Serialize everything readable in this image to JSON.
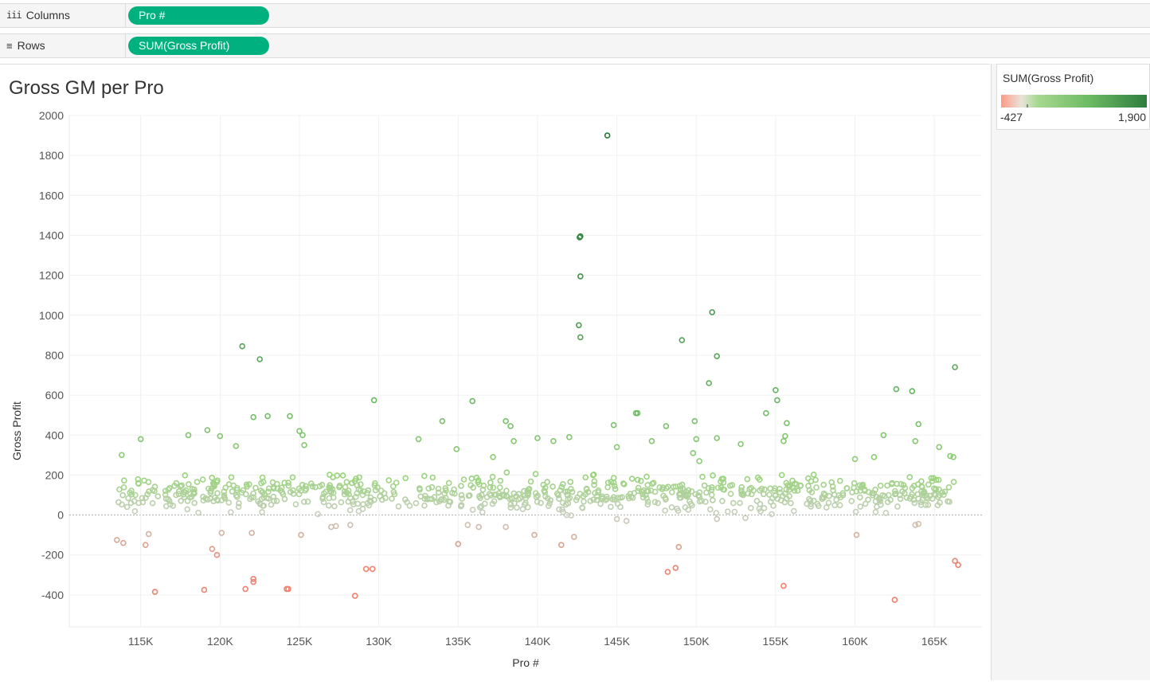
{
  "shelves": {
    "columns": {
      "label": "Columns",
      "icon": "columns-icon",
      "pill": "Pro #"
    },
    "rows": {
      "label": "Rows",
      "icon": "rows-icon",
      "pill": "SUM(Gross Profit)"
    }
  },
  "colors": {
    "pill": "#00b180",
    "negative": "#ff9a85",
    "neutral": "#d9dcd6",
    "light_green": "#9ed885",
    "mid_green": "#5cb85c",
    "dark_green": "#2e7d3e"
  },
  "legend": {
    "title": "SUM(Gross Profit)",
    "min_label": "-427",
    "max_label": "1,900",
    "min": -427,
    "max": 1900
  },
  "chart_data": {
    "type": "scatter",
    "title": "Gross GM per Pro",
    "xlabel": "Pro #",
    "ylabel": "Gross Profit",
    "xlim": [
      110500,
      168000
    ],
    "ylim": [
      -560,
      2000
    ],
    "x_ticks": [
      115000,
      120000,
      125000,
      130000,
      135000,
      140000,
      145000,
      150000,
      155000,
      160000,
      165000
    ],
    "x_tick_labels": [
      "115K",
      "120K",
      "125K",
      "130K",
      "135K",
      "140K",
      "145K",
      "150K",
      "155K",
      "160K",
      "165K"
    ],
    "y_ticks": [
      -400,
      -200,
      0,
      200,
      400,
      600,
      800,
      1000,
      1200,
      1400,
      1600,
      1800,
      2000
    ],
    "y_tick_labels": [
      "-400",
      "-200",
      "0",
      "200",
      "400",
      "600",
      "800",
      "1000",
      "1200",
      "1400",
      "1600",
      "1800",
      "2000"
    ],
    "zero_line": true,
    "grid": true,
    "marker": "hollow-circle",
    "points": [
      [
        144400,
        1900
      ],
      [
        142700,
        1395
      ],
      [
        142650,
        1390
      ],
      [
        142700,
        1195
      ],
      [
        142600,
        950
      ],
      [
        142700,
        890
      ],
      [
        151000,
        1015
      ],
      [
        149100,
        875
      ],
      [
        151300,
        795
      ],
      [
        150800,
        660
      ],
      [
        155000,
        625
      ],
      [
        155100,
        575
      ],
      [
        162600,
        630
      ],
      [
        163600,
        620
      ],
      [
        166300,
        740
      ],
      [
        121400,
        845
      ],
      [
        122500,
        780
      ],
      [
        122100,
        490
      ],
      [
        123000,
        495
      ],
      [
        124400,
        495
      ],
      [
        129700,
        575
      ],
      [
        135900,
        570
      ],
      [
        115000,
        380
      ],
      [
        113800,
        300
      ],
      [
        118000,
        400
      ],
      [
        119200,
        425
      ],
      [
        120000,
        395
      ],
      [
        121000,
        345
      ],
      [
        125000,
        420
      ],
      [
        125200,
        400
      ],
      [
        125300,
        350
      ],
      [
        132500,
        380
      ],
      [
        134000,
        470
      ],
      [
        138000,
        470
      ],
      [
        138300,
        445
      ],
      [
        140000,
        385
      ],
      [
        141000,
        370
      ],
      [
        142000,
        390
      ],
      [
        144800,
        450
      ],
      [
        146300,
        510
      ],
      [
        146200,
        510
      ],
      [
        147200,
        370
      ],
      [
        148100,
        445
      ],
      [
        149900,
        470
      ],
      [
        150000,
        380
      ],
      [
        151300,
        385
      ],
      [
        152800,
        355
      ],
      [
        154400,
        510
      ],
      [
        155500,
        370
      ],
      [
        155700,
        460
      ],
      [
        155600,
        395
      ],
      [
        160000,
        280
      ],
      [
        161200,
        290
      ],
      [
        161800,
        400
      ],
      [
        164000,
        455
      ],
      [
        163800,
        370
      ],
      [
        165300,
        340
      ],
      [
        166000,
        295
      ],
      [
        166200,
        290
      ],
      [
        134900,
        330
      ],
      [
        137200,
        290
      ],
      [
        138500,
        370
      ],
      [
        143500,
        200
      ],
      [
        145000,
        340
      ],
      [
        149800,
        310
      ],
      [
        150200,
        270
      ],
      [
        113500,
        -125
      ],
      [
        113900,
        -140
      ],
      [
        115300,
        -150
      ],
      [
        115500,
        -95
      ],
      [
        115900,
        -385
      ],
      [
        119000,
        -375
      ],
      [
        119500,
        -170
      ],
      [
        119800,
        -200
      ],
      [
        120100,
        -90
      ],
      [
        121600,
        -370
      ],
      [
        122100,
        -335
      ],
      [
        122100,
        -320
      ],
      [
        122000,
        -90
      ],
      [
        124200,
        -370
      ],
      [
        124300,
        -370
      ],
      [
        125100,
        -100
      ],
      [
        128500,
        -405
      ],
      [
        129200,
        -270
      ],
      [
        129600,
        -270
      ],
      [
        135000,
        -145
      ],
      [
        139800,
        -100
      ],
      [
        141500,
        -150
      ],
      [
        142300,
        -110
      ],
      [
        148200,
        -285
      ],
      [
        148700,
        -265
      ],
      [
        148900,
        -160
      ],
      [
        155500,
        -355
      ],
      [
        160100,
        -100
      ],
      [
        162500,
        -425
      ],
      [
        166300,
        -230
      ],
      [
        166500,
        -250
      ],
      [
        164000,
        -45
      ],
      [
        163800,
        -50
      ],
      [
        127000,
        -60
      ],
      [
        127300,
        -55
      ],
      [
        136300,
        -60
      ],
      [
        138000,
        -60
      ],
      [
        145000,
        -20
      ],
      [
        145600,
        -30
      ],
      [
        151300,
        -20
      ],
      [
        153100,
        -15
      ],
      [
        128200,
        -50
      ],
      [
        135600,
        -50
      ]
    ],
    "filler_cloud": {
      "x_range": [
        113500,
        166500
      ],
      "median_value": 130,
      "spread": [
        -20,
        230
      ]
    }
  }
}
